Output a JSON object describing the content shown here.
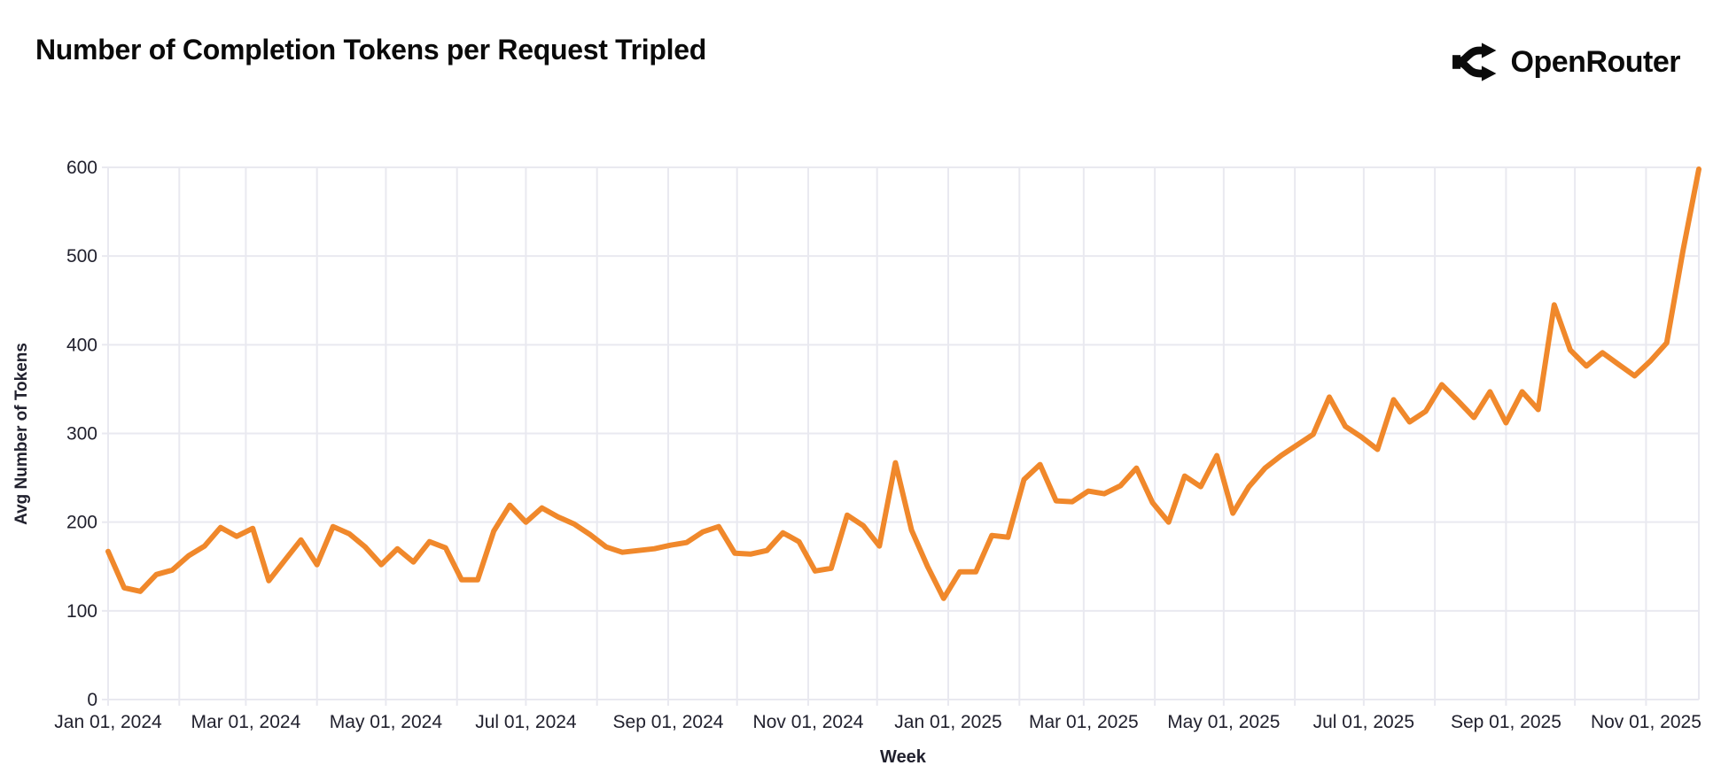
{
  "header": {
    "title": "Number of Completion Tokens per Request Tripled",
    "logo_text": "OpenRouter"
  },
  "colors": {
    "background": "#ffffff",
    "grid": "#e9e9f0",
    "tick_text": "#21212e",
    "title_text": "#0a0a0a",
    "line": "#F0882B"
  },
  "chart_data": {
    "type": "line",
    "title": "Number of Completion Tokens per Request Tripled",
    "xlabel": "Week",
    "ylabel": "Avg Number of Tokens",
    "ylim": [
      0,
      600
    ],
    "y_ticks": [
      0,
      100,
      200,
      300,
      400,
      500,
      600
    ],
    "grid": true,
    "legend_position": "none",
    "line_color": "#F0882B",
    "x_ticks": [
      {
        "label": "Jan 01, 2024",
        "date": "2024-01-01"
      },
      {
        "label": "Mar 01, 2024",
        "date": "2024-03-01"
      },
      {
        "label": "May 01, 2024",
        "date": "2024-05-01"
      },
      {
        "label": "Jul 01, 2024",
        "date": "2024-07-01"
      },
      {
        "label": "Sep 01, 2024",
        "date": "2024-09-01"
      },
      {
        "label": "Nov 01, 2024",
        "date": "2024-11-01"
      },
      {
        "label": "Jan 01, 2025",
        "date": "2025-01-01"
      },
      {
        "label": "Mar 01, 2025",
        "date": "2025-03-01"
      },
      {
        "label": "May 01, 2025",
        "date": "2025-05-01"
      },
      {
        "label": "Jul 01, 2025",
        "date": "2025-07-01"
      },
      {
        "label": "Sep 01, 2025",
        "date": "2025-09-01"
      },
      {
        "label": "Nov 01, 2025",
        "date": "2025-11-01"
      }
    ],
    "series": [
      {
        "name": "Avg Number of Tokens per Request",
        "start_date": "2024-01-01",
        "interval_days": 7,
        "values": [
          167,
          126,
          122,
          141,
          146,
          162,
          173,
          194,
          184,
          193,
          134,
          157,
          180,
          152,
          195,
          187,
          172,
          152,
          170,
          155,
          178,
          171,
          135,
          135,
          190,
          219,
          200,
          216,
          206,
          198,
          186,
          172,
          166,
          168,
          170,
          174,
          177,
          189,
          195,
          165,
          164,
          168,
          188,
          178,
          145,
          148,
          208,
          196,
          173,
          267,
          191,
          150,
          114,
          144,
          144,
          185,
          183,
          248,
          265,
          224,
          223,
          235,
          232,
          241,
          261,
          222,
          200,
          252,
          240,
          275,
          210,
          240,
          261,
          275,
          287,
          299,
          341,
          308,
          296,
          282,
          338,
          313,
          325,
          355,
          337,
          318,
          347,
          312,
          347,
          327,
          445,
          394,
          376,
          391,
          378,
          365,
          382,
          402,
          505,
          598
        ]
      }
    ]
  }
}
